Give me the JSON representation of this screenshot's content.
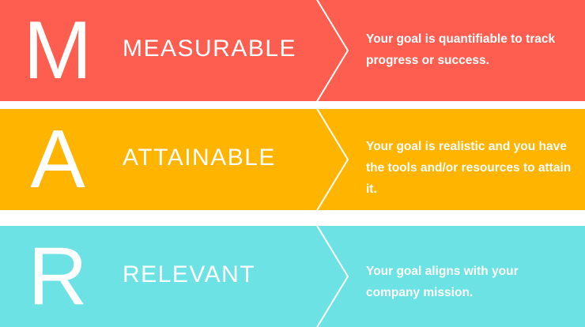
{
  "rows": [
    {
      "letter": "M",
      "word": "MEASURABLE",
      "description": "Your goal is quantifiable to track progress or success.",
      "color": "#FD5E50"
    },
    {
      "letter": "A",
      "word": "ATTAINABLE",
      "description": "Your goal is realistic and you have the tools and/or resources to attain it.",
      "color": "#FFB400"
    },
    {
      "letter": "R",
      "word": "RELEVANT",
      "description": "Your goal aligns with your company mission.",
      "color": "#6CE2E4"
    }
  ]
}
